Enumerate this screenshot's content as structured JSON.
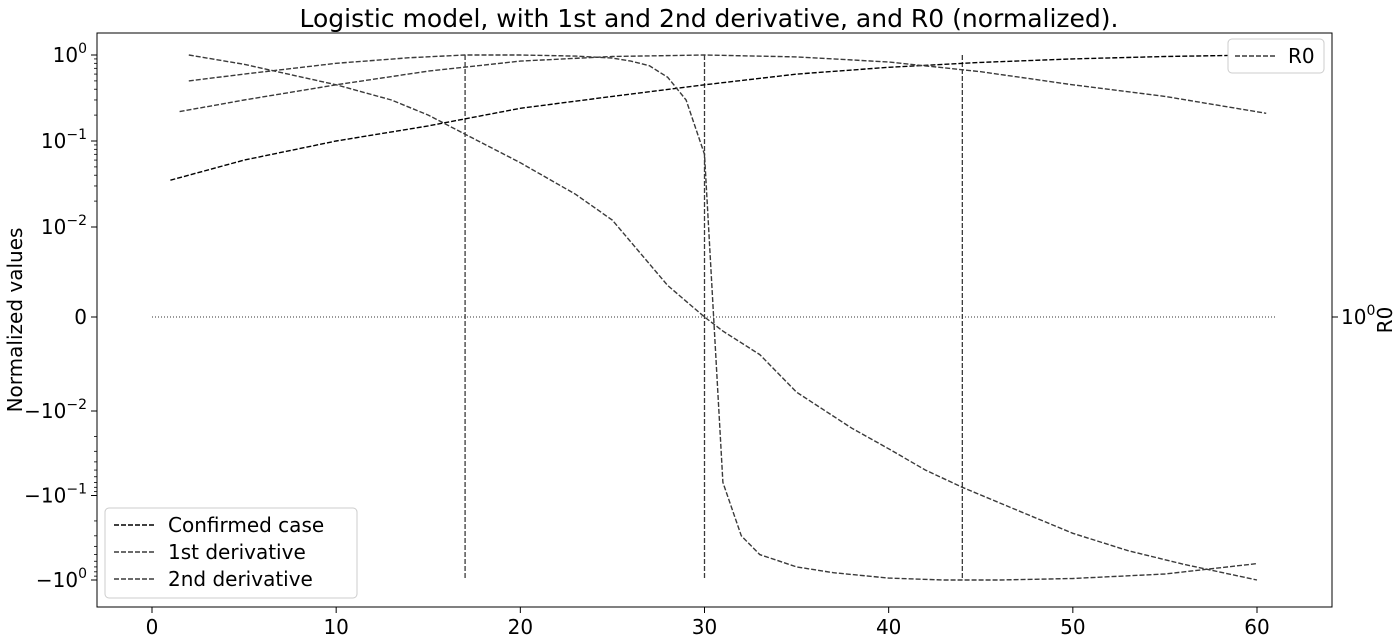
{
  "chart_data": {
    "type": "line",
    "title": "Logistic model, with 1st and 2nd derivative, and R0 (normalized).",
    "xlabel": "",
    "ylabel": "Normalized values",
    "y2label": "R0",
    "yscale": "symlog",
    "y2scale": "log",
    "grid": false,
    "xlim": [
      -3,
      64
    ],
    "ylim": [
      -1.25,
      1.25
    ],
    "x_ticks": [
      {
        "value": 0,
        "label": "0"
      },
      {
        "value": 10,
        "label": "10"
      },
      {
        "value": 20,
        "label": "20"
      },
      {
        "value": 30,
        "label": "30"
      },
      {
        "value": 40,
        "label": "40"
      },
      {
        "value": 50,
        "label": "50"
      },
      {
        "value": 60,
        "label": "60"
      }
    ],
    "y_ticks": [
      {
        "value": 1,
        "base": "10",
        "exp": "0",
        "sign": ""
      },
      {
        "value": 0.1,
        "base": "10",
        "exp": "−1",
        "sign": ""
      },
      {
        "value": 0.01,
        "base": "10",
        "exp": "−2",
        "sign": ""
      },
      {
        "value": 0,
        "plain": "0"
      },
      {
        "value": -0.01,
        "base": "10",
        "exp": "−2",
        "sign": "−"
      },
      {
        "value": -0.1,
        "base": "10",
        "exp": "−1",
        "sign": "−"
      },
      {
        "value": -1,
        "base": "10",
        "exp": "0",
        "sign": "−"
      }
    ],
    "y2_ticks": [
      {
        "value": 1,
        "base": "10",
        "exp": "0"
      }
    ],
    "legend_left": {
      "placement": "lower-left",
      "entries": [
        "Confirmed case",
        "1st derivative",
        "2nd derivative"
      ]
    },
    "legend_right": {
      "placement": "upper-right",
      "entries": [
        "R0"
      ]
    },
    "series": [
      {
        "name": "Confirmed case",
        "color": "#000000",
        "x": [
          1,
          5,
          10,
          15,
          20,
          25,
          30,
          35,
          40,
          45,
          50,
          55,
          60
        ],
        "y": [
          0.035,
          0.06,
          0.1,
          0.15,
          0.24,
          0.33,
          0.45,
          0.6,
          0.72,
          0.82,
          0.9,
          0.96,
          1.0
        ]
      },
      {
        "name": "1st derivative",
        "color": "#3a3a3a",
        "x": [
          1.5,
          5,
          10,
          15,
          20,
          25,
          30,
          35,
          40,
          45,
          50,
          55,
          60.5
        ],
        "y": [
          0.22,
          0.3,
          0.45,
          0.65,
          0.85,
          0.96,
          1.0,
          0.95,
          0.83,
          0.64,
          0.45,
          0.33,
          0.21
        ]
      },
      {
        "name": "2nd derivative",
        "color": "#3a3a3a",
        "x": [
          2,
          5,
          10,
          13,
          15,
          17,
          20,
          23,
          25,
          28,
          30,
          31,
          33,
          35,
          38,
          40,
          42,
          44,
          47,
          50,
          53,
          56,
          60
        ],
        "y": [
          1,
          0.78,
          0.45,
          0.3,
          0.2,
          0.12,
          0.056,
          0.024,
          0.012,
          0.0035,
          0,
          -0.0015,
          -0.004,
          -0.008,
          -0.016,
          -0.028,
          -0.05,
          -0.08,
          -0.15,
          -0.28,
          -0.45,
          -0.65,
          -1
        ]
      },
      {
        "name": "R0",
        "color": "#3a3a3a",
        "x": [
          2,
          5,
          10,
          14,
          17,
          20,
          23,
          25,
          26,
          27,
          28,
          29,
          30,
          31,
          32,
          33,
          35,
          37,
          40,
          43,
          46,
          50,
          55,
          60
        ],
        "y": [
          0.5,
          0.6,
          0.8,
          0.93,
          1.0,
          1.0,
          0.97,
          0.92,
          0.85,
          0.75,
          0.55,
          0.3,
          0.07,
          -0.07,
          -0.3,
          -0.5,
          -0.7,
          -0.82,
          -0.95,
          -1.0,
          -1.0,
          -0.96,
          -0.85,
          -0.64
        ]
      }
    ],
    "vertical_lines": [
      {
        "x": 17,
        "y_from": -1,
        "y_to": 1
      },
      {
        "x": 30,
        "y_from": -1,
        "y_to": 1
      },
      {
        "x": 44,
        "y_from": -1,
        "y_to": 1
      }
    ],
    "zero_line": {
      "x_from": 0,
      "x_to": 61,
      "y": 0
    }
  }
}
